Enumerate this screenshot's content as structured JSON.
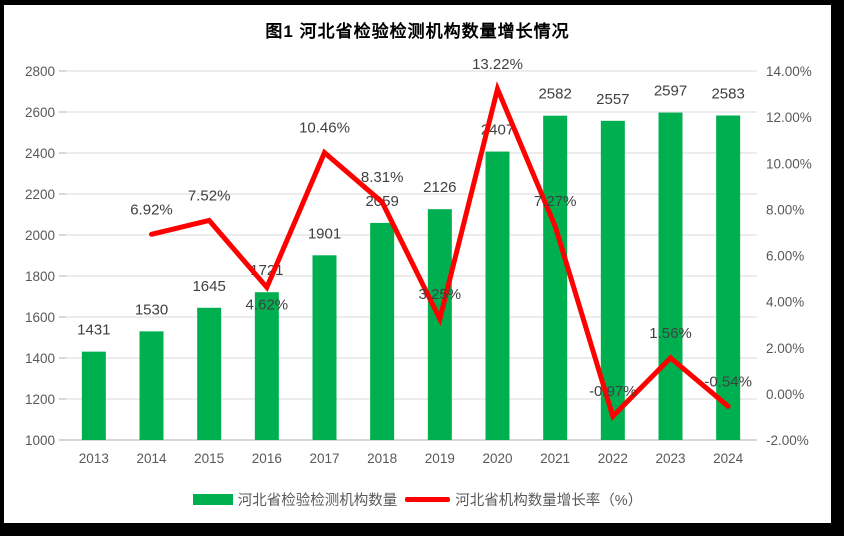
{
  "chart_data": {
    "type": "combo-bar-line",
    "title": "图1  河北省检验检测机构数量增长情况",
    "categories": [
      "2013",
      "2014",
      "2015",
      "2016",
      "2017",
      "2018",
      "2019",
      "2020",
      "2021",
      "2022",
      "2023",
      "2024"
    ],
    "series": [
      {
        "name": "河北省检验检测机构数量",
        "type": "bar",
        "axis": "left",
        "color": "#00B050",
        "values": [
          1431,
          1530,
          1645,
          1721,
          1901,
          2059,
          2126,
          2407,
          2582,
          2557,
          2597,
          2583
        ],
        "labels": [
          "1431",
          "1530",
          "1645",
          "1721",
          "1901",
          "2059",
          "2126",
          "2407",
          "2582",
          "2557",
          "2597",
          "2583"
        ]
      },
      {
        "name": "河北省机构数量增长率（%）",
        "type": "line",
        "axis": "right",
        "color": "#FF0000",
        "values": [
          null,
          6.92,
          7.52,
          4.62,
          10.46,
          8.31,
          3.25,
          13.22,
          7.27,
          -0.97,
          1.56,
          -0.54
        ],
        "labels": [
          null,
          "6.92%",
          "7.52%",
          "4.62%",
          "10.46%",
          "8.31%",
          "3.25%",
          "13.22%",
          "7.27%",
          "-0.97%",
          "1.56%",
          "-0.54%"
        ],
        "label_side": [
          null,
          "above",
          "above",
          "below",
          "above",
          "above",
          "above",
          "above",
          "above",
          "above",
          "above",
          "above"
        ]
      }
    ],
    "left_axis": {
      "min": 1000,
      "max": 2800,
      "ticks": [
        1000,
        1200,
        1400,
        1600,
        1800,
        2000,
        2200,
        2400,
        2600,
        2800
      ],
      "tick_labels": [
        "1000",
        "1200",
        "1400",
        "1600",
        "1800",
        "2000",
        "2200",
        "2400",
        "2600",
        "2800"
      ]
    },
    "right_axis": {
      "min": -2,
      "max": 14,
      "ticks": [
        -2,
        0,
        2,
        4,
        6,
        8,
        10,
        12,
        14
      ],
      "tick_labels": [
        "-2.00%",
        "0.00%",
        "2.00%",
        "4.00%",
        "6.00%",
        "8.00%",
        "10.00%",
        "12.00%",
        "14.00%"
      ]
    },
    "grid": true,
    "legend_position": "bottom",
    "colors": {
      "bar": "#00B050",
      "line": "#FF0000",
      "gridline": "#D9D9D9",
      "axis_line": "#BFBFBF",
      "axis_text": "#595959",
      "data_label": "#404040",
      "title_text": "#000000",
      "frame": "#000000",
      "background": "#FFFFFF"
    }
  }
}
